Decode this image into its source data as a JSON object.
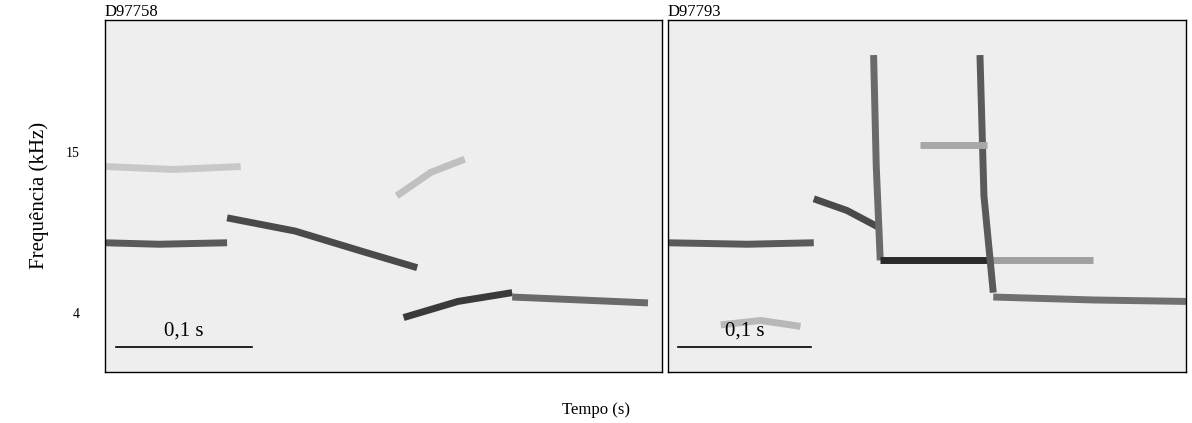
{
  "chart_data": [
    {
      "type": "line",
      "title": "D97758",
      "y_label": "Frequência (kHz)",
      "x_label": "Tempo (s)",
      "xlim": [
        0,
        0.41
      ],
      "ylim": [
        0,
        24
      ],
      "yticks": [
        15,
        4
      ],
      "tick_labels": "y",
      "scale_bar": {
        "value": 0.1,
        "label": "0,1 s"
      },
      "series": [
        {
          "x": [
            0.0,
            0.04,
            0.09
          ],
          "values": [
            8.8,
            8.7,
            8.8
          ],
          "color": "#5a5a5a"
        },
        {
          "x": [
            0.09,
            0.14,
            0.19,
            0.23
          ],
          "values": [
            10.5,
            9.6,
            8.2,
            7.1
          ],
          "color": "#4a4a4a"
        },
        {
          "x": [
            0.22,
            0.26,
            0.3
          ],
          "values": [
            3.7,
            4.8,
            5.4
          ],
          "color": "#3a3a3a"
        },
        {
          "x": [
            0.3,
            0.35,
            0.4
          ],
          "values": [
            5.1,
            4.9,
            4.7
          ],
          "color": "#6a6a6a"
        },
        {
          "x": [
            0.0,
            0.05,
            0.1
          ],
          "values": [
            14.0,
            13.8,
            14.0
          ],
          "color": "#c8c8c8"
        },
        {
          "x": [
            0.215,
            0.24,
            0.265
          ],
          "values": [
            12.0,
            13.6,
            14.5
          ],
          "color": "#c0c0c0"
        }
      ]
    },
    {
      "type": "line",
      "title": "D97793",
      "xlim": [
        0,
        0.39
      ],
      "ylim": [
        0,
        24
      ],
      "tick_labels": false,
      "scale_bar": {
        "value": 0.1,
        "label": "0,1 s"
      },
      "series": [
        {
          "x": [
            0.0,
            0.06,
            0.11
          ],
          "values": [
            8.8,
            8.7,
            8.8
          ],
          "color": "#5a5a5a"
        },
        {
          "x": [
            0.11,
            0.135,
            0.16
          ],
          "values": [
            11.8,
            11.0,
            9.8
          ],
          "color": "#4a4a4a"
        },
        {
          "x": [
            0.155,
            0.157,
            0.16
          ],
          "values": [
            21.6,
            14.0,
            7.6
          ],
          "color": "#6a6a6a"
        },
        {
          "x": [
            0.16,
            0.2,
            0.24
          ],
          "values": [
            7.6,
            7.6,
            7.6
          ],
          "color": "#2a2a2a"
        },
        {
          "x": [
            0.24,
            0.28,
            0.32
          ],
          "values": [
            7.6,
            7.6,
            7.6
          ],
          "color": "#a0a0a0"
        },
        {
          "x": [
            0.235,
            0.238,
            0.245
          ],
          "values": [
            21.6,
            12.0,
            5.4
          ],
          "color": "#5a5a5a"
        },
        {
          "x": [
            0.245,
            0.32,
            0.39
          ],
          "values": [
            5.1,
            4.9,
            4.8
          ],
          "color": "#707070"
        },
        {
          "x": [
            0.19,
            0.215,
            0.24
          ],
          "values": [
            15.5,
            15.5,
            15.5
          ],
          "color": "#a8a8a8"
        },
        {
          "x": [
            0.04,
            0.07,
            0.1
          ],
          "values": [
            3.2,
            3.5,
            3.1
          ],
          "color": "#b8b8b8"
        }
      ]
    }
  ]
}
